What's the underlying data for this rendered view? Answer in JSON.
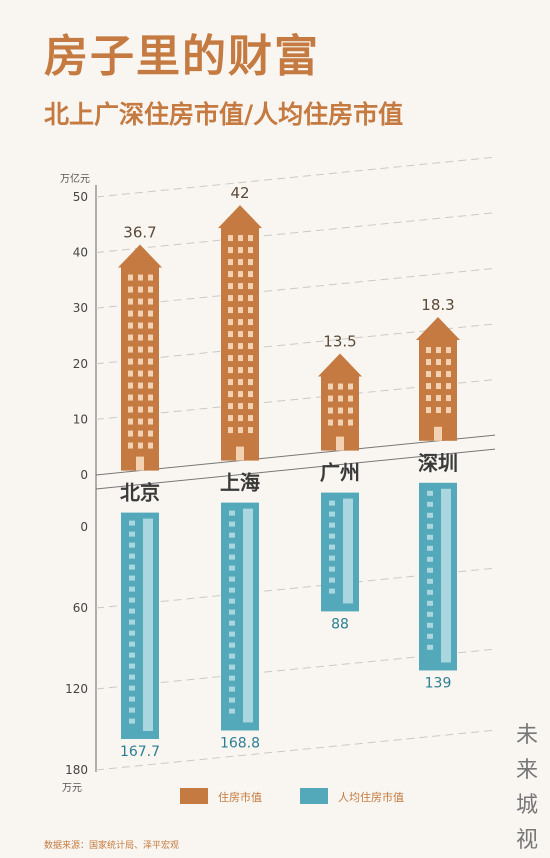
{
  "title": "房子里的财富",
  "subtitle": "北上广深住房市值/人均住房市值",
  "source": "数据来源：国家统计局、泽平宏观",
  "brand": [
    "未",
    "来",
    "城",
    "视"
  ],
  "colors": {
    "orange": "#c47a40",
    "orange_light": "#f3d2b3",
    "teal": "#53a9ba",
    "teal_light": "#a9d6df"
  },
  "chart_data": [
    {
      "type": "bar",
      "categories": [
        "北京",
        "上海",
        "广州",
        "深圳"
      ],
      "values": [
        36.7,
        42,
        13.5,
        18.3
      ],
      "value_labels": [
        "36.7",
        "42",
        "13.5",
        "18.3"
      ],
      "series_name": "住房市值",
      "unit": "万亿元",
      "ylim": [
        0,
        50
      ],
      "ticks": [
        "0",
        "10",
        "20",
        "30",
        "40",
        "50"
      ],
      "grid": true
    },
    {
      "type": "bar",
      "categories": [
        "北京",
        "上海",
        "广州",
        "深圳"
      ],
      "values": [
        167.7,
        168.8,
        88,
        139
      ],
      "value_labels": [
        "167.7",
        "168.8",
        "88",
        "139"
      ],
      "series_name": "人均住房市值",
      "unit": "万元",
      "ylim": [
        0,
        180
      ],
      "ticks": [
        "0",
        "60",
        "120",
        "180"
      ],
      "direction": "downward",
      "grid": true
    }
  ]
}
